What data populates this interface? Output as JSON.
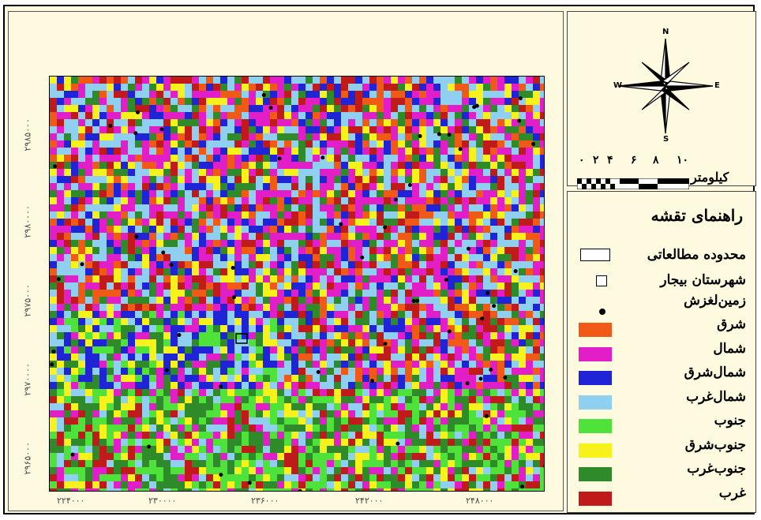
{
  "map": {
    "y_ticks": [
      "۲۹۸۵۰۰۰",
      "۲۹۸۰۰۰۰",
      "۲۹۷۵۰۰۰",
      "۲۹۷۰۰۰۰",
      "۲۹۶۵۰۰۰"
    ],
    "x_ticks": [
      "۲۲۴۰۰۰",
      "۲۳۰۰۰۰",
      "۲۳۶۰۰۰",
      "۲۴۲۰۰۰",
      "۲۴۸۰۰۰"
    ]
  },
  "compass": {
    "n": "N",
    "s": "S",
    "e": "E",
    "w": "W"
  },
  "scale": {
    "numbers": [
      "۰",
      "۲",
      "۴",
      "۶",
      "۸",
      "۱۰"
    ],
    "unit": "کیلومتر"
  },
  "legend": {
    "title": "راهنمای تقشه",
    "symbols": [
      {
        "label": "محدوده مطالعاتی",
        "icon": "study-area-rectangle"
      },
      {
        "label": "شهرستان بیجار",
        "icon": "city-square"
      },
      {
        "label": "زمین‌لغزش",
        "icon": "landslide-dot"
      }
    ],
    "classes": [
      {
        "label": "شرق",
        "color": "#f05a16"
      },
      {
        "label": "شمال",
        "color": "#e21ec8"
      },
      {
        "label": "شمال‌شرق",
        "color": "#1f24d6"
      },
      {
        "label": "شمال‌غرب",
        "color": "#8fd0f0"
      },
      {
        "label": "جنوب",
        "color": "#4fe23a"
      },
      {
        "label": "جنوب‌شرق",
        "color": "#f7f21c"
      },
      {
        "label": "جنوب‌غرب",
        "color": "#2f8a2a"
      },
      {
        "label": "غرب",
        "color": "#c01a1a"
      }
    ]
  }
}
